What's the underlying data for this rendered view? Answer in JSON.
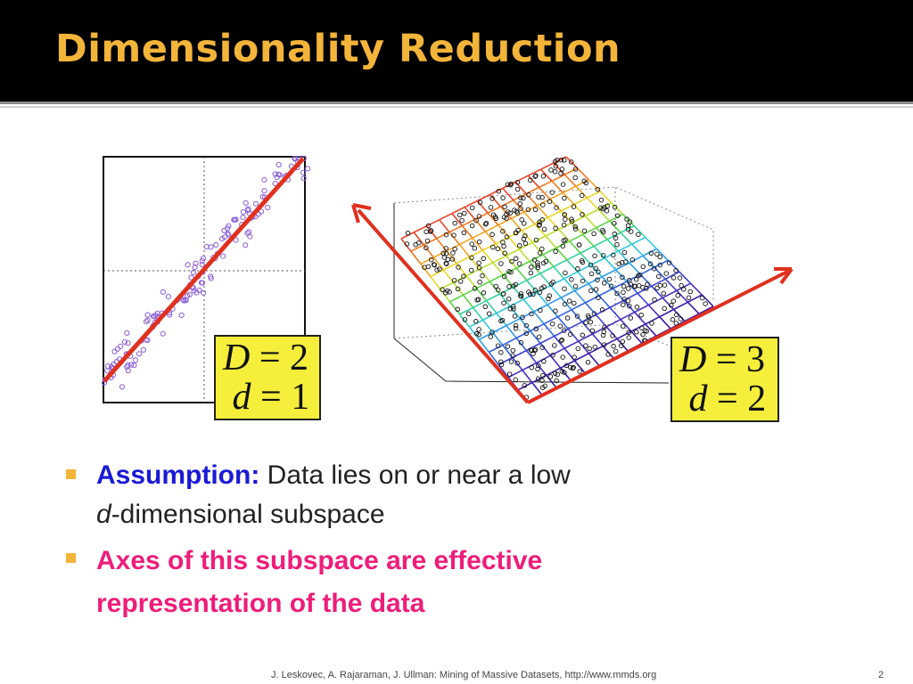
{
  "slide": {
    "title": "Dimensionality Reduction",
    "colors": {
      "title": "#f3b43a",
      "assumption": "#1a1ad6",
      "emphasis": "#ee1d7a",
      "box": "#f5ef3c",
      "axis_line": "#e0301e"
    }
  },
  "figure_left": {
    "D_label": "D",
    "D_value": "2",
    "d_label": "d",
    "d_value": "1"
  },
  "figure_right": {
    "D_label": "D",
    "D_value": "3",
    "d_label": "d",
    "d_value": "2"
  },
  "bullets": [
    {
      "keyword": "Assumption:",
      "text": " Data lies on or near a low",
      "line2_italic": "d",
      "line2_rest": "-dimensional subspace"
    },
    {
      "text": "Axes of this subspace are effective representation of the data"
    }
  ],
  "footer": {
    "citation": "J. Leskovec, A. Rajaraman, J. Ullman: Mining of Massive Datasets, http://www.mmds.org",
    "page": "2"
  }
}
